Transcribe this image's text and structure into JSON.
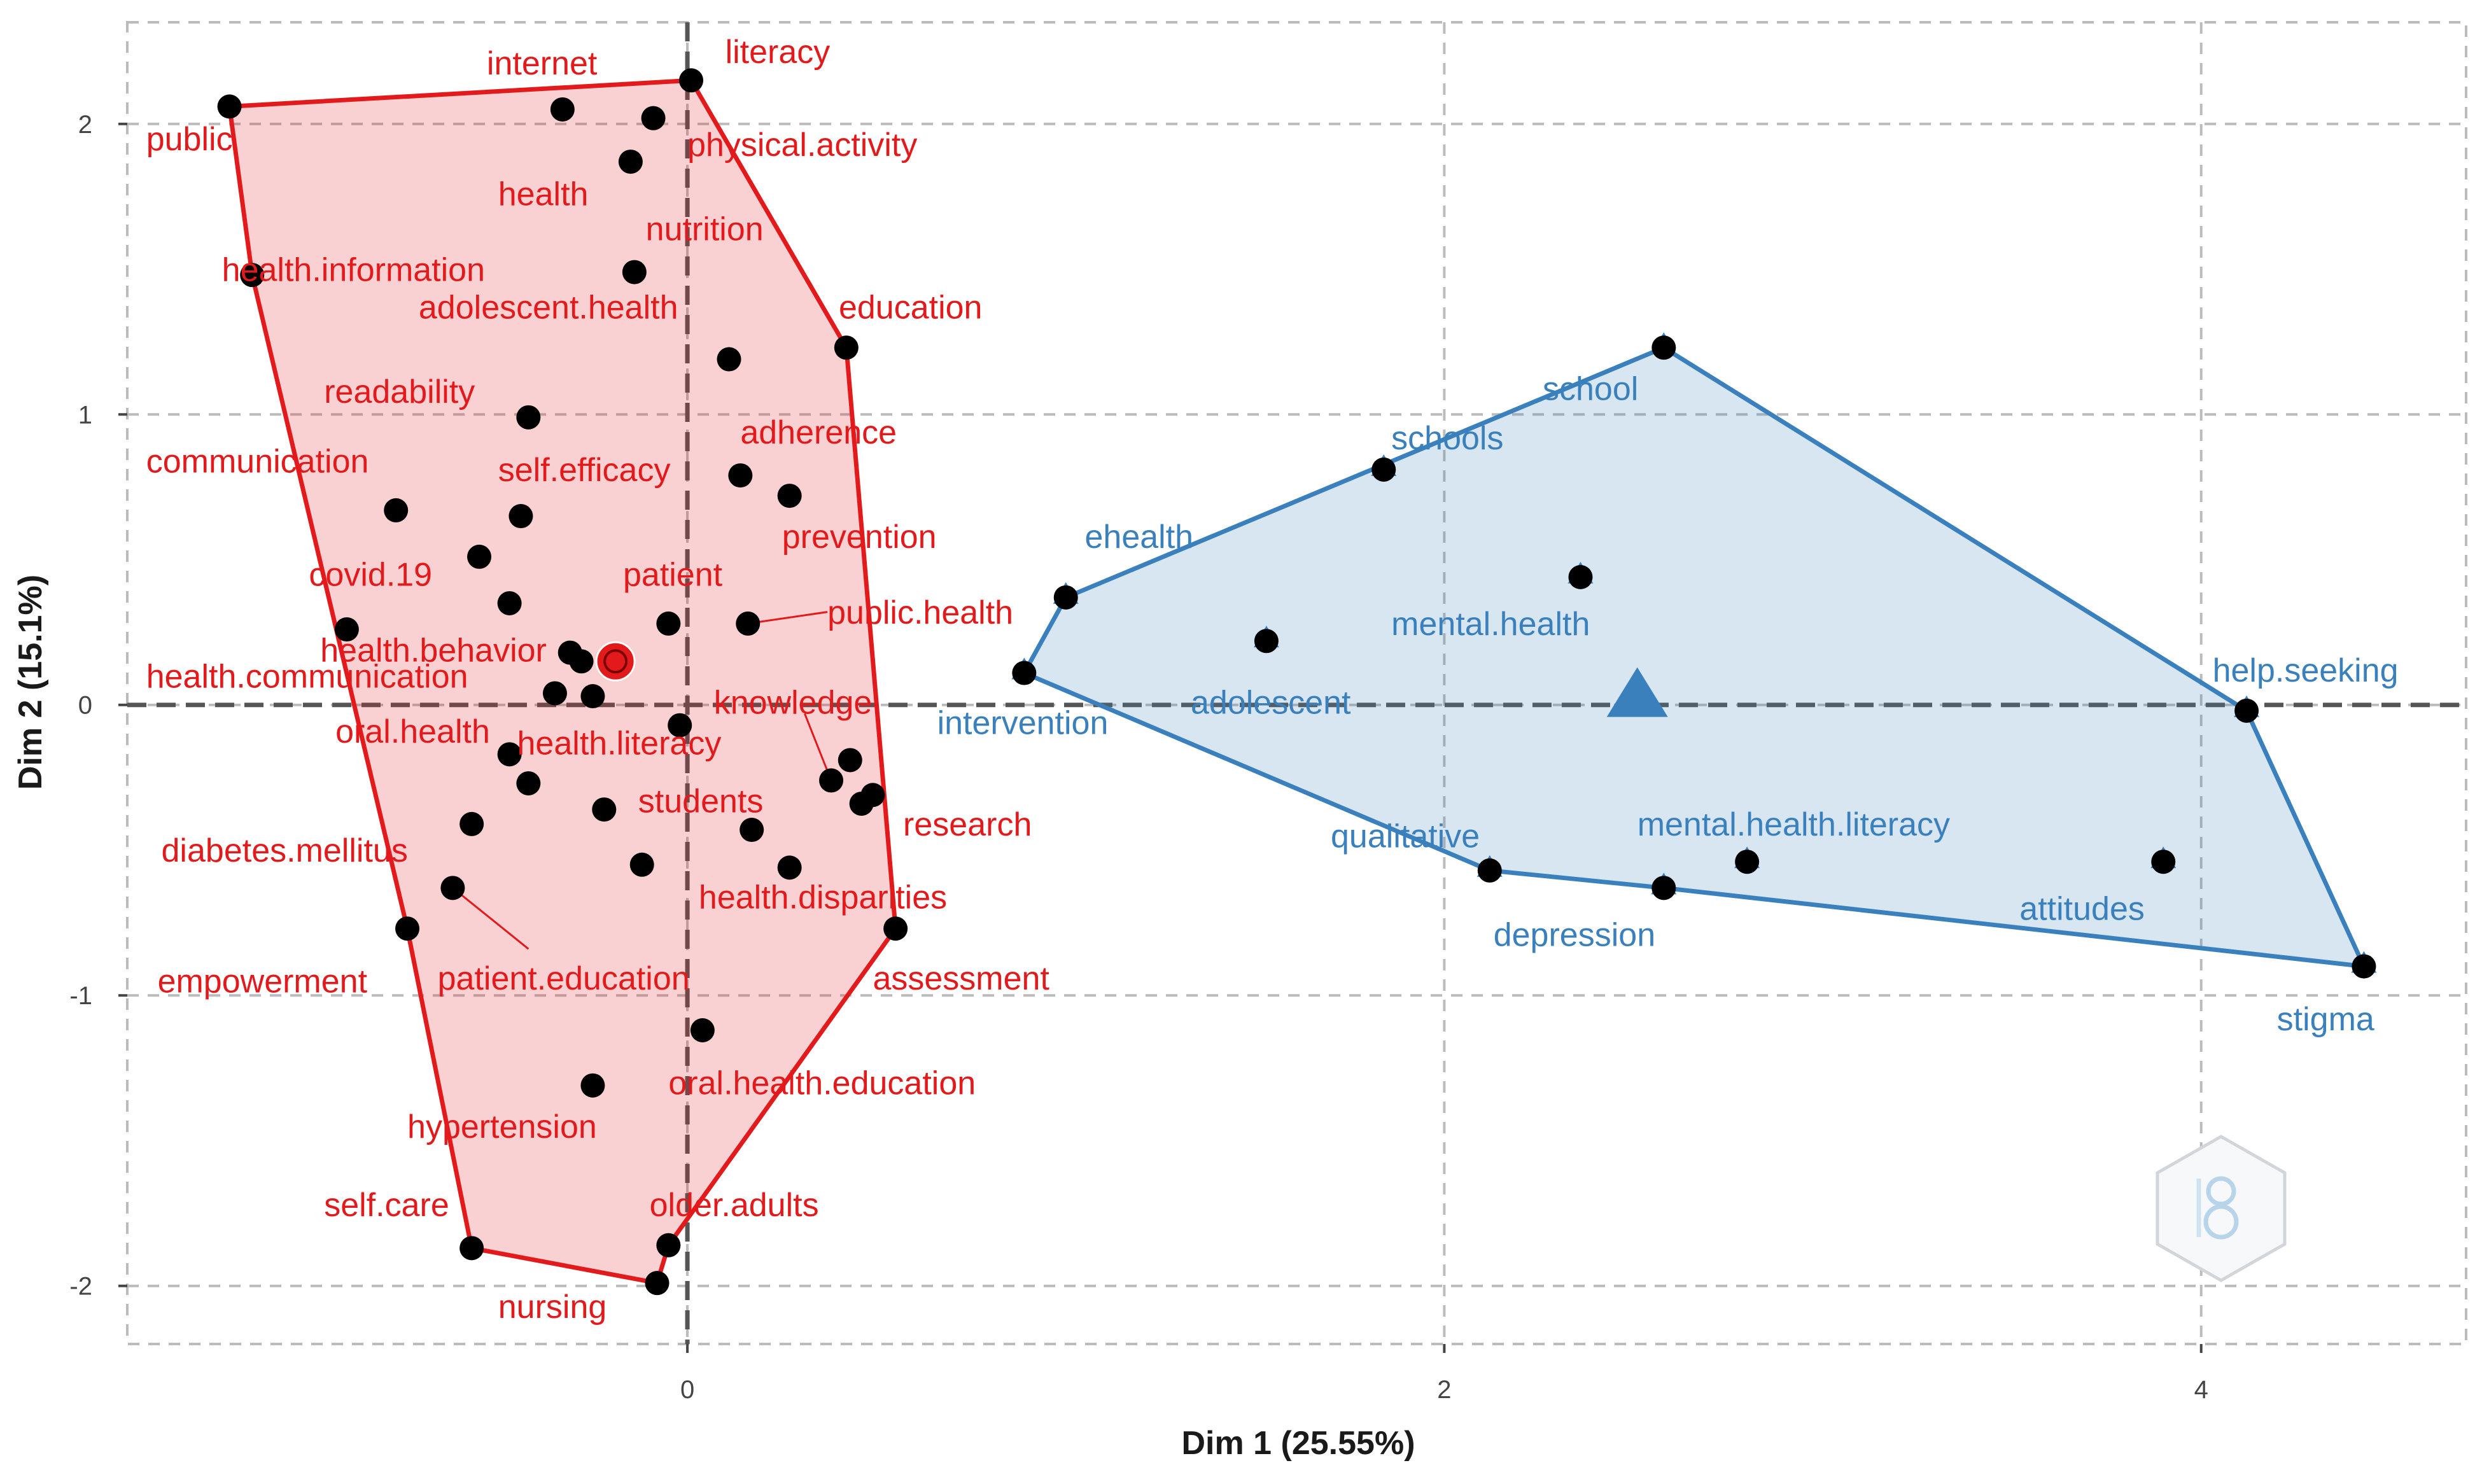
{
  "chart_data": {
    "type": "scatter",
    "xlabel": "Dim 1 (25.55%)",
    "ylabel": "Dim 2 (15.1%)",
    "xlim": [
      -1.48,
      4.7
    ],
    "ylim": [
      -2.2,
      2.35
    ],
    "x_ticks": [
      "0",
      "2",
      "4"
    ],
    "x_tick_values": [
      0,
      2,
      4
    ],
    "y_ticks": [
      "-2",
      "-1",
      "0",
      "1",
      "2"
    ],
    "y_tick_values": [
      -2,
      -1,
      0,
      1,
      2
    ],
    "grid": true,
    "colors": {
      "cluster1": "#e31a1c",
      "cluster2": "#3a80bd",
      "point": "#000000",
      "grid": "#bbbbbb"
    },
    "clusters": [
      {
        "points": [
          {
            "x": -1.21,
            "y": 2.06
          },
          {
            "x": 0.01,
            "y": 2.15
          },
          {
            "x": -0.33,
            "y": 2.05
          },
          {
            "x": -0.09,
            "y": 2.02
          },
          {
            "x": -0.15,
            "y": 1.87
          },
          {
            "x": -1.15,
            "y": 1.48
          },
          {
            "x": -0.14,
            "y": 1.49
          },
          {
            "x": 0.42,
            "y": 1.23
          },
          {
            "x": 0.11,
            "y": 1.19
          },
          {
            "x": -0.42,
            "y": 0.99
          },
          {
            "x": 0.14,
            "y": 0.79
          },
          {
            "x": 0.27,
            "y": 0.72
          },
          {
            "x": -0.77,
            "y": 0.67
          },
          {
            "x": -0.44,
            "y": 0.65
          },
          {
            "x": -0.55,
            "y": 0.51
          },
          {
            "x": -0.47,
            "y": 0.35
          },
          {
            "x": -0.9,
            "y": 0.26
          },
          {
            "x": -0.05,
            "y": 0.28
          },
          {
            "x": 0.16,
            "y": 0.28
          },
          {
            "x": -0.31,
            "y": 0.18
          },
          {
            "x": -0.28,
            "y": 0.15
          },
          {
            "x": -0.35,
            "y": 0.04
          },
          {
            "x": -0.25,
            "y": 0.03
          },
          {
            "x": -0.02,
            "y": -0.07
          },
          {
            "x": -0.47,
            "y": -0.17
          },
          {
            "x": 0.43,
            "y": -0.19
          },
          {
            "x": -0.42,
            "y": -0.27
          },
          {
            "x": 0.38,
            "y": -0.26
          },
          {
            "x": 0.49,
            "y": -0.31
          },
          {
            "x": 0.46,
            "y": -0.34
          },
          {
            "x": -0.22,
            "y": -0.36
          },
          {
            "x": -0.57,
            "y": -0.41
          },
          {
            "x": 0.17,
            "y": -0.43
          },
          {
            "x": -0.12,
            "y": -0.55
          },
          {
            "x": 0.27,
            "y": -0.56
          },
          {
            "x": -0.62,
            "y": -0.63
          },
          {
            "x": -0.74,
            "y": -0.77
          },
          {
            "x": 0.55,
            "y": -0.77
          },
          {
            "x": 0.04,
            "y": -1.12
          },
          {
            "x": -0.25,
            "y": -1.31
          },
          {
            "x": -0.05,
            "y": -1.86
          },
          {
            "x": -0.57,
            "y": -1.87
          },
          {
            "x": -0.08,
            "y": -1.99
          }
        ],
        "hull": [
          {
            "x": -1.21,
            "y": 2.06
          },
          {
            "x": 0.01,
            "y": 2.15
          },
          {
            "x": 0.42,
            "y": 1.23
          },
          {
            "x": 0.55,
            "y": -0.77
          },
          {
            "x": -0.05,
            "y": -1.86
          },
          {
            "x": -0.08,
            "y": -1.99
          },
          {
            "x": -0.57,
            "y": -1.87
          },
          {
            "x": -0.74,
            "y": -0.77
          },
          {
            "x": -1.15,
            "y": 1.48
          }
        ],
        "centroid": {
          "x": -0.19,
          "y": 0.15
        },
        "labels": [
          {
            "text": "internet",
            "x": -0.53,
            "y": 2.17
          },
          {
            "text": "literacy",
            "x": 0.1,
            "y": 2.21
          },
          {
            "text": "public",
            "x": -1.43,
            "y": 1.91
          },
          {
            "text": "physical.activity",
            "x": 0.0,
            "y": 1.89
          },
          {
            "text": "health",
            "x": -0.5,
            "y": 1.72
          },
          {
            "text": "nutrition",
            "x": -0.11,
            "y": 1.6
          },
          {
            "text": "health.information",
            "x": -1.23,
            "y": 1.46
          },
          {
            "text": "adolescent.health",
            "x": -0.71,
            "y": 1.33
          },
          {
            "text": "education",
            "x": 0.4,
            "y": 1.33
          },
          {
            "text": "readability",
            "x": -0.96,
            "y": 1.04
          },
          {
            "text": "adherence",
            "x": 0.14,
            "y": 0.9
          },
          {
            "text": "communication",
            "x": -1.43,
            "y": 0.8
          },
          {
            "text": "self.efficacy",
            "x": -0.5,
            "y": 0.77
          },
          {
            "text": "prevention",
            "x": 0.25,
            "y": 0.54
          },
          {
            "text": "covid.19",
            "x": -1.0,
            "y": 0.41
          },
          {
            "text": "patient",
            "x": -0.17,
            "y": 0.41
          },
          {
            "text": "public.health",
            "x": 0.37,
            "y": 0.28
          },
          {
            "text": "health.behavior",
            "x": -0.97,
            "y": 0.15
          },
          {
            "text": "health.communication",
            "x": -1.43,
            "y": 0.06
          },
          {
            "text": "knowledge",
            "x": 0.07,
            "y": -0.03
          },
          {
            "text": "oral.health",
            "x": -0.93,
            "y": -0.13
          },
          {
            "text": "health.literacy",
            "x": -0.45,
            "y": -0.17
          },
          {
            "text": "students",
            "x": -0.13,
            "y": -0.37
          },
          {
            "text": "research",
            "x": 0.57,
            "y": -0.45
          },
          {
            "text": "diabetes.mellitus",
            "x": -1.39,
            "y": -0.54
          },
          {
            "text": "health.disparities",
            "x": 0.03,
            "y": -0.7
          },
          {
            "text": "empowerment",
            "x": -1.4,
            "y": -0.99
          },
          {
            "text": "patient.education",
            "x": -0.66,
            "y": -0.98
          },
          {
            "text": "assessment",
            "x": 0.49,
            "y": -0.98
          },
          {
            "text": "oral.health.education",
            "x": -0.05,
            "y": -1.34
          },
          {
            "text": "hypertension",
            "x": -0.74,
            "y": -1.49
          },
          {
            "text": "self.care",
            "x": -0.96,
            "y": -1.76
          },
          {
            "text": "older.adults",
            "x": -0.1,
            "y": -1.76
          },
          {
            "text": "nursing",
            "x": -0.5,
            "y": -2.11
          }
        ]
      },
      {
        "points": [
          {
            "x": 2.58,
            "y": 1.23
          },
          {
            "x": 1.84,
            "y": 0.81
          },
          {
            "x": 2.36,
            "y": 0.44
          },
          {
            "x": 1.0,
            "y": 0.37
          },
          {
            "x": 1.53,
            "y": 0.22
          },
          {
            "x": 0.89,
            "y": 0.11
          },
          {
            "x": 4.12,
            "y": -0.02
          },
          {
            "x": 2.12,
            "y": -0.57
          },
          {
            "x": 2.8,
            "y": -0.54
          },
          {
            "x": 3.9,
            "y": -0.54
          },
          {
            "x": 2.58,
            "y": -0.63
          },
          {
            "x": 4.43,
            "y": -0.9
          }
        ],
        "hull": [
          {
            "x": 0.89,
            "y": 0.11
          },
          {
            "x": 1.0,
            "y": 0.37
          },
          {
            "x": 2.58,
            "y": 1.23
          },
          {
            "x": 4.12,
            "y": -0.02
          },
          {
            "x": 4.43,
            "y": -0.9
          },
          {
            "x": 2.58,
            "y": -0.63
          },
          {
            "x": 2.12,
            "y": -0.57
          }
        ],
        "centroid": {
          "x": 2.51,
          "y": 0.02
        },
        "labels": [
          {
            "text": "school",
            "x": 2.26,
            "y": 1.05
          },
          {
            "text": "schools",
            "x": 1.86,
            "y": 0.88
          },
          {
            "text": "ehealth",
            "x": 1.05,
            "y": 0.54
          },
          {
            "text": "mental.health",
            "x": 1.86,
            "y": 0.24
          },
          {
            "text": "help.seeking",
            "x": 4.03,
            "y": 0.08
          },
          {
            "text": "adolescent",
            "x": 1.33,
            "y": -0.03
          },
          {
            "text": "intervention",
            "x": 0.66,
            "y": -0.1
          },
          {
            "text": "qualitative",
            "x": 1.7,
            "y": -0.49
          },
          {
            "text": "mental.health.literacy",
            "x": 2.51,
            "y": -0.45
          },
          {
            "text": "attitudes",
            "x": 3.52,
            "y": -0.74
          },
          {
            "text": "depression",
            "x": 2.13,
            "y": -0.83
          },
          {
            "text": "stigma",
            "x": 4.2,
            "y": -1.12
          }
        ]
      }
    ],
    "leader_lines": [
      {
        "from": {
          "x": 0.16,
          "y": 0.28
        },
        "to": {
          "x": 0.37,
          "y": 0.32
        }
      },
      {
        "from": {
          "x": 0.38,
          "y": -0.26
        },
        "to": {
          "x": 0.31,
          "y": -0.03
        }
      },
      {
        "from": {
          "x": -0.62,
          "y": -0.63
        },
        "to": {
          "x": -0.42,
          "y": -0.84
        }
      }
    ]
  }
}
